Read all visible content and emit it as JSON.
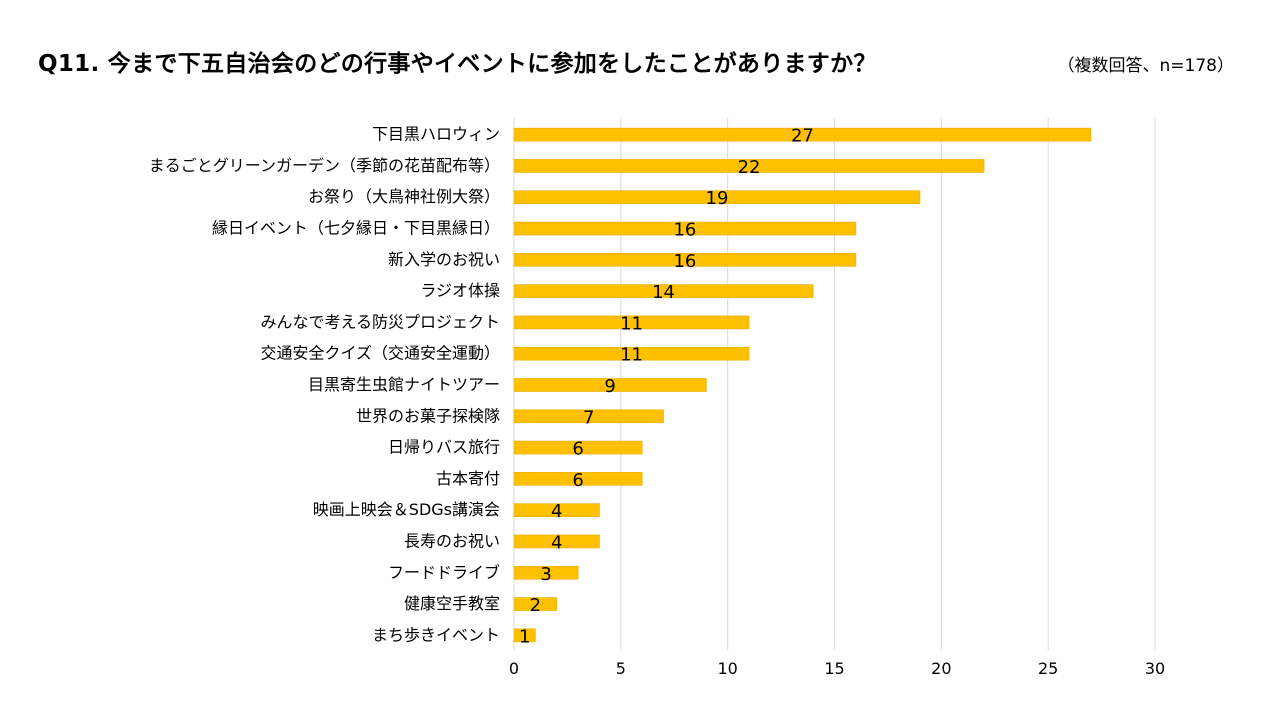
{
  "header": {
    "title": "Q11. 今まで下五自治会のどの行事やイベントに参加をしたことがありますか？",
    "note": "（複数回答、n=178）"
  },
  "colors": {
    "bar": "#FFC000",
    "bar_edge": "#E6AC00",
    "grid": "#D9D9D9"
  },
  "chart_data": {
    "type": "bar",
    "orientation": "horizontal",
    "title": "Q11. 今まで下五自治会のどの行事やイベントに参加をしたことがありますか？",
    "subtitle": "（複数回答、n=178）",
    "categories": [
      "下目黒ハロウィン",
      "まるごとグリーンガーデン（季節の花苗配布等）",
      "お祭り（大鳥神社例大祭）",
      "縁日イベント（七夕縁日・下目黒縁日）",
      "新入学のお祝い",
      "ラジオ体操",
      "みんなで考える防災プロジェクト",
      "交通安全クイズ（交通安全運動）",
      "目黒寄生虫館ナイトツアー",
      "世界のお菓子探検隊",
      "日帰りバス旅行",
      "古本寄付",
      "映画上映会＆SDGs講演会",
      "長寿のお祝い",
      "フードドライブ",
      "健康空手教室",
      "まち歩きイベント"
    ],
    "values": [
      27,
      22,
      19,
      16,
      16,
      14,
      11,
      11,
      9,
      7,
      6,
      6,
      4,
      4,
      3,
      2,
      1
    ],
    "xlim": [
      0,
      30
    ],
    "xticks": [
      0,
      5,
      10,
      15,
      20,
      25,
      30
    ],
    "xlabel": "",
    "ylabel": "",
    "grid": "vertical"
  }
}
